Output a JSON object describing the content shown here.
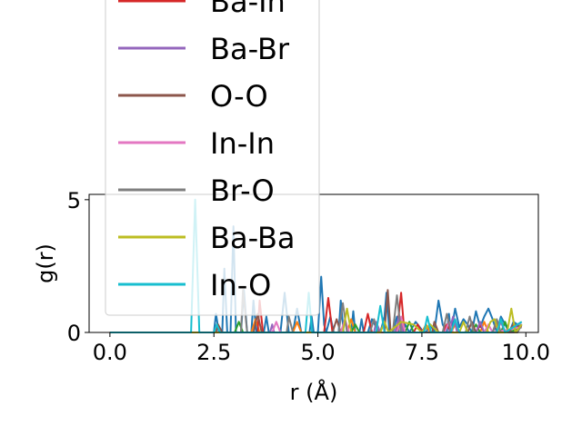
{
  "chart_data": {
    "type": "line",
    "title": "",
    "xlabel": "r (Å)",
    "ylabel": "g(r)",
    "xlim": [
      -0.5,
      10.3
    ],
    "ylim": [
      0,
      5.2
    ],
    "xticks": [
      "0.0",
      "2.5",
      "5.0",
      "7.5",
      "10.0"
    ],
    "yticks": [
      "0",
      "5"
    ],
    "grid": false,
    "legend_position": "upper-left",
    "series": [
      {
        "name": "",
        "color": "#1f77b4",
        "points": [
          [
            0,
            0
          ],
          [
            2.0,
            0
          ],
          [
            2.5,
            0
          ],
          [
            2.55,
            0.7
          ],
          [
            2.62,
            0
          ],
          [
            2.7,
            0
          ],
          [
            2.75,
            2.4
          ],
          [
            2.82,
            0
          ],
          [
            2.9,
            0
          ],
          [
            2.97,
            4.0
          ],
          [
            3.03,
            0
          ],
          [
            3.15,
            0
          ],
          [
            3.22,
            1.6
          ],
          [
            3.3,
            0
          ],
          [
            3.4,
            0
          ],
          [
            3.45,
            1.2
          ],
          [
            3.52,
            0
          ],
          [
            3.7,
            0
          ],
          [
            3.76,
            0.6
          ],
          [
            3.82,
            0
          ],
          [
            4.1,
            0
          ],
          [
            4.2,
            1.5
          ],
          [
            4.3,
            0
          ],
          [
            4.4,
            0
          ],
          [
            4.5,
            0.9
          ],
          [
            4.6,
            0
          ],
          [
            4.8,
            0
          ],
          [
            4.85,
            0.6
          ],
          [
            4.9,
            0
          ],
          [
            5.0,
            0
          ],
          [
            5.08,
            2.1
          ],
          [
            5.15,
            0.3
          ],
          [
            5.2,
            0
          ],
          [
            5.3,
            0.6
          ],
          [
            5.38,
            0
          ],
          [
            5.5,
            0
          ],
          [
            5.55,
            1.2
          ],
          [
            5.62,
            0
          ],
          [
            5.8,
            0
          ],
          [
            5.85,
            0.8
          ],
          [
            5.9,
            0
          ],
          [
            6.0,
            0
          ],
          [
            6.05,
            0.5
          ],
          [
            6.1,
            0
          ],
          [
            6.2,
            0
          ],
          [
            6.3,
            0.5
          ],
          [
            6.4,
            0.2
          ],
          [
            6.5,
            0
          ],
          [
            6.6,
            0.6
          ],
          [
            6.65,
            1.5
          ],
          [
            6.72,
            0
          ],
          [
            6.8,
            0
          ],
          [
            6.9,
            0.6
          ],
          [
            6.95,
            0
          ],
          [
            7.05,
            0
          ],
          [
            7.1,
            0.3
          ],
          [
            7.2,
            0
          ],
          [
            7.35,
            0.4
          ],
          [
            7.5,
            0.1
          ],
          [
            7.6,
            0
          ],
          [
            7.7,
            0.3
          ],
          [
            7.8,
            0
          ],
          [
            7.9,
            1.2
          ],
          [
            8.0,
            0.3
          ],
          [
            8.1,
            0
          ],
          [
            8.15,
            0.7
          ],
          [
            8.2,
            0
          ],
          [
            8.3,
            0.9
          ],
          [
            8.4,
            0.2
          ],
          [
            8.5,
            0.5
          ],
          [
            8.6,
            0.3
          ],
          [
            8.7,
            0
          ],
          [
            8.8,
            0.8
          ],
          [
            8.9,
            0.2
          ],
          [
            9.0,
            0.6
          ],
          [
            9.1,
            0.9
          ],
          [
            9.2,
            0.5
          ],
          [
            9.3,
            0
          ],
          [
            9.4,
            0.6
          ],
          [
            9.5,
            0.3
          ],
          [
            9.6,
            0
          ],
          [
            9.7,
            0.4
          ],
          [
            9.8,
            0.3
          ],
          [
            9.9,
            0.4
          ]
        ]
      },
      {
        "name": "",
        "color": "#ff7f0e",
        "points": [
          [
            0,
            0
          ],
          [
            3.4,
            0
          ],
          [
            3.5,
            0.5
          ],
          [
            3.6,
            0
          ],
          [
            4.4,
            0
          ],
          [
            4.5,
            0.4
          ],
          [
            4.6,
            0
          ],
          [
            5.7,
            0
          ],
          [
            5.8,
            0.5
          ],
          [
            5.9,
            0
          ],
          [
            6.9,
            0
          ],
          [
            7.0,
            0.4
          ],
          [
            7.1,
            0
          ],
          [
            7.5,
            0
          ],
          [
            7.6,
            0.3
          ],
          [
            7.7,
            0
          ],
          [
            8.2,
            0
          ],
          [
            8.3,
            0.3
          ],
          [
            8.4,
            0
          ],
          [
            8.9,
            0
          ],
          [
            9.0,
            0.4
          ],
          [
            9.1,
            0
          ],
          [
            9.6,
            0
          ],
          [
            9.7,
            0.3
          ],
          [
            9.9,
            0.2
          ]
        ]
      },
      {
        "name": "",
        "color": "#2ca02c",
        "points": [
          [
            0,
            0
          ],
          [
            3.0,
            0
          ],
          [
            3.1,
            0.4
          ],
          [
            3.2,
            0
          ],
          [
            5.8,
            0
          ],
          [
            5.9,
            0.3
          ],
          [
            6.0,
            0
          ],
          [
            7.1,
            0
          ],
          [
            7.2,
            0.4
          ],
          [
            7.3,
            0
          ],
          [
            8.0,
            0
          ],
          [
            8.1,
            0.3
          ],
          [
            8.2,
            0
          ],
          [
            8.7,
            0
          ],
          [
            8.8,
            0.3
          ],
          [
            8.9,
            0
          ],
          [
            9.4,
            0
          ],
          [
            9.5,
            0.4
          ],
          [
            9.6,
            0
          ],
          [
            9.9,
            0.2
          ]
        ]
      },
      {
        "name": "Ba-In",
        "color": "#d62728",
        "points": [
          [
            0,
            0
          ],
          [
            3.55,
            0
          ],
          [
            3.6,
            1.2
          ],
          [
            3.68,
            0
          ],
          [
            5.15,
            0
          ],
          [
            5.25,
            1.3
          ],
          [
            5.35,
            0
          ],
          [
            6.1,
            0
          ],
          [
            6.2,
            0.7
          ],
          [
            6.3,
            0
          ],
          [
            6.9,
            0
          ],
          [
            7.0,
            1.5
          ],
          [
            7.08,
            0
          ],
          [
            7.3,
            0
          ],
          [
            7.4,
            0.3
          ],
          [
            7.5,
            0
          ],
          [
            8.0,
            0
          ],
          [
            8.1,
            0.3
          ],
          [
            8.2,
            0
          ],
          [
            8.8,
            0
          ],
          [
            8.9,
            0.3
          ],
          [
            9.0,
            0
          ],
          [
            9.2,
            0
          ],
          [
            9.3,
            0.4
          ],
          [
            9.4,
            0
          ],
          [
            9.6,
            0
          ],
          [
            9.7,
            0.3
          ],
          [
            9.9,
            0.2
          ]
        ]
      },
      {
        "name": "Ba-Br",
        "color": "#9467bd",
        "points": [
          [
            0,
            0
          ],
          [
            3.85,
            0
          ],
          [
            3.9,
            0.3
          ],
          [
            3.95,
            0
          ],
          [
            6.35,
            0
          ],
          [
            6.4,
            0.4
          ],
          [
            6.5,
            0
          ],
          [
            6.85,
            0
          ],
          [
            6.95,
            0.6
          ],
          [
            7.05,
            0
          ],
          [
            8.15,
            0
          ],
          [
            8.25,
            0.6
          ],
          [
            8.35,
            0
          ],
          [
            8.8,
            0
          ],
          [
            8.9,
            0.4
          ],
          [
            9.0,
            0
          ],
          [
            9.3,
            0
          ],
          [
            9.4,
            0.4
          ],
          [
            9.5,
            0
          ],
          [
            9.9,
            0.3
          ]
        ]
      },
      {
        "name": "O-O",
        "color": "#8c564b",
        "points": [
          [
            0,
            0
          ],
          [
            2.55,
            0
          ],
          [
            2.6,
            0.3
          ],
          [
            2.7,
            0
          ],
          [
            3.45,
            0
          ],
          [
            3.55,
            0.7
          ],
          [
            3.65,
            0
          ],
          [
            5.35,
            0
          ],
          [
            5.45,
            0.5
          ],
          [
            5.55,
            0
          ],
          [
            6.6,
            0
          ],
          [
            6.68,
            1.6
          ],
          [
            6.75,
            0
          ],
          [
            7.75,
            0
          ],
          [
            7.8,
            0.4
          ],
          [
            7.9,
            0
          ],
          [
            8.6,
            0
          ],
          [
            8.7,
            0.4
          ],
          [
            8.8,
            0
          ],
          [
            9.6,
            0
          ],
          [
            9.7,
            0.3
          ],
          [
            9.9,
            0.2
          ]
        ]
      },
      {
        "name": "In-In",
        "color": "#e377c2",
        "points": [
          [
            0,
            0
          ],
          [
            3.9,
            0
          ],
          [
            4.0,
            0.4
          ],
          [
            4.1,
            0
          ],
          [
            5.55,
            0
          ],
          [
            5.65,
            0.5
          ],
          [
            5.75,
            0
          ],
          [
            6.9,
            0
          ],
          [
            7.0,
            0.6
          ],
          [
            7.1,
            0
          ],
          [
            8.05,
            0
          ],
          [
            8.15,
            0.4
          ],
          [
            8.25,
            0
          ],
          [
            9.0,
            0
          ],
          [
            9.1,
            0.3
          ],
          [
            9.2,
            0
          ],
          [
            9.9,
            0.2
          ]
        ]
      },
      {
        "name": "Br-O",
        "color": "#7f7f7f",
        "points": [
          [
            0,
            0
          ],
          [
            3.15,
            0
          ],
          [
            3.2,
            1.6
          ],
          [
            3.3,
            0
          ],
          [
            4.25,
            0
          ],
          [
            4.3,
            0.6
          ],
          [
            4.4,
            0
          ],
          [
            5.5,
            0
          ],
          [
            5.6,
            1.1
          ],
          [
            5.7,
            0
          ],
          [
            6.25,
            0
          ],
          [
            6.35,
            0.5
          ],
          [
            6.45,
            0
          ],
          [
            6.8,
            0
          ],
          [
            6.9,
            1.4
          ],
          [
            7.0,
            0
          ],
          [
            8.0,
            0
          ],
          [
            8.1,
            0.7
          ],
          [
            8.2,
            0
          ],
          [
            8.55,
            0
          ],
          [
            8.65,
            0.6
          ],
          [
            8.75,
            0
          ],
          [
            9.2,
            0
          ],
          [
            9.3,
            0.5
          ],
          [
            9.4,
            0
          ],
          [
            9.8,
            0
          ],
          [
            9.9,
            0.3
          ]
        ]
      },
      {
        "name": "Ba-Ba",
        "color": "#bcbd22",
        "points": [
          [
            0,
            0
          ],
          [
            5.6,
            0
          ],
          [
            5.7,
            0.9
          ],
          [
            5.8,
            0
          ],
          [
            6.5,
            0
          ],
          [
            6.6,
            0.4
          ],
          [
            6.7,
            0
          ],
          [
            7.0,
            0.4
          ],
          [
            7.3,
            0.3
          ],
          [
            7.5,
            0
          ],
          [
            7.7,
            0.3
          ],
          [
            7.9,
            0
          ],
          [
            8.4,
            0
          ],
          [
            8.5,
            0.4
          ],
          [
            8.6,
            0
          ],
          [
            9.05,
            0
          ],
          [
            9.15,
            0.4
          ],
          [
            9.25,
            0.5
          ],
          [
            9.35,
            0
          ],
          [
            9.55,
            0
          ],
          [
            9.65,
            0.9
          ],
          [
            9.75,
            0
          ],
          [
            9.9,
            0.3
          ]
        ]
      },
      {
        "name": "In-O",
        "color": "#17becf",
        "points": [
          [
            0,
            0
          ],
          [
            1.95,
            0
          ],
          [
            2.05,
            5.0
          ],
          [
            2.15,
            0
          ],
          [
            2.5,
            0
          ],
          [
            2.57,
            0.3
          ],
          [
            2.65,
            0
          ],
          [
            4.7,
            0
          ],
          [
            4.78,
            1.5
          ],
          [
            4.86,
            0
          ],
          [
            6.4,
            0
          ],
          [
            6.5,
            1.0
          ],
          [
            6.6,
            0
          ],
          [
            7.55,
            0
          ],
          [
            7.63,
            0.6
          ],
          [
            7.72,
            0
          ],
          [
            8.2,
            0
          ],
          [
            8.3,
            0.5
          ],
          [
            8.4,
            0
          ],
          [
            9.3,
            0
          ],
          [
            9.4,
            0.5
          ],
          [
            9.5,
            0
          ],
          [
            9.9,
            0.4
          ]
        ]
      }
    ]
  }
}
